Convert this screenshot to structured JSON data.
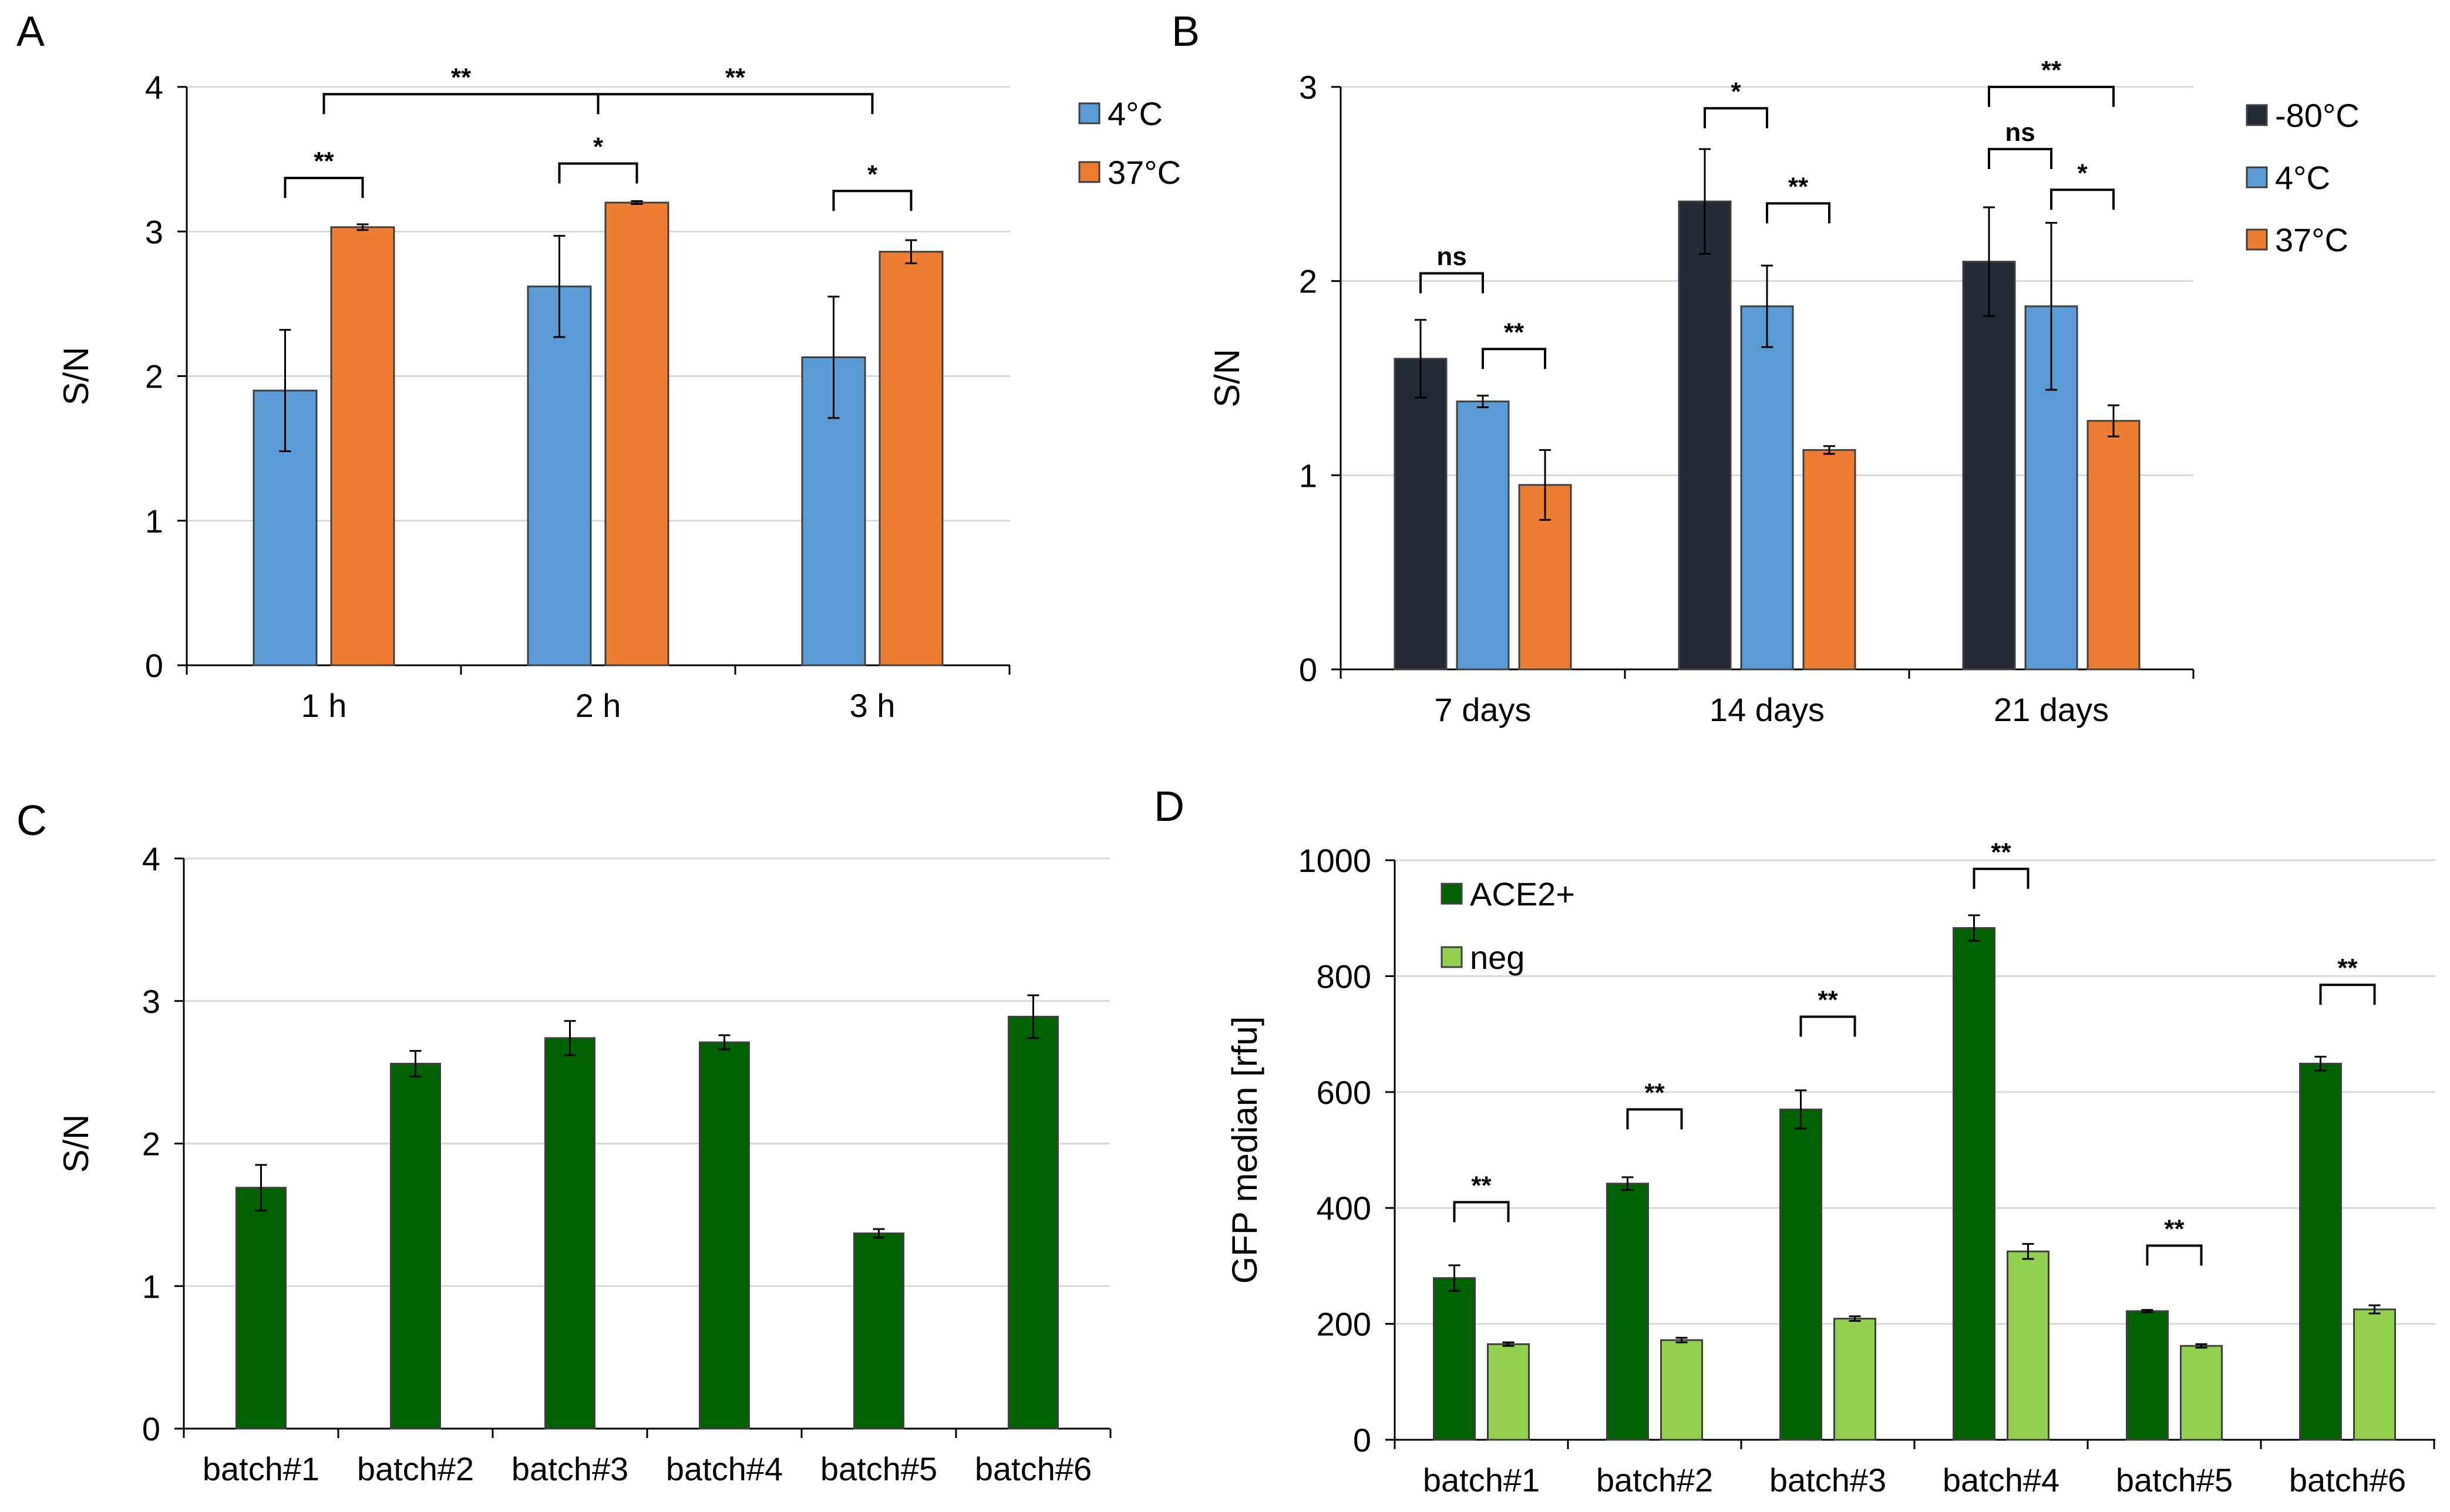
{
  "chart_data": [
    {
      "panel": "A",
      "type": "bar",
      "ylabel": "S/N",
      "xlabel": "",
      "ylim": [
        0,
        4
      ],
      "yticks": [
        0,
        1,
        2,
        3,
        4
      ],
      "categories": [
        "1 h",
        "2 h",
        "3 h"
      ],
      "series": [
        {
          "name": "4°C",
          "color": "#5b9bd5",
          "values": [
            1.9,
            2.62,
            2.13
          ],
          "errors": [
            0.42,
            0.35,
            0.42
          ]
        },
        {
          "name": "37°C",
          "color": "#ed7d31",
          "values": [
            3.03,
            3.2,
            2.86
          ],
          "errors": [
            0.02,
            0.01,
            0.08
          ]
        }
      ],
      "legend_position": "top-right",
      "grid": true,
      "annotations": [
        {
          "label": "**",
          "from": [
            0,
            0
          ],
          "to": [
            0,
            1
          ],
          "level": 3.37
        },
        {
          "label": "*",
          "from": [
            1,
            0
          ],
          "to": [
            1,
            1
          ],
          "level": 3.47
        },
        {
          "label": "*",
          "from": [
            2,
            0
          ],
          "to": [
            2,
            1
          ],
          "level": 3.28
        },
        {
          "label": "**",
          "from": [
            0,
            "mid"
          ],
          "to": [
            1,
            "mid"
          ],
          "level": 3.95
        },
        {
          "label": "**",
          "from": [
            1,
            "mid"
          ],
          "to": [
            2,
            "mid"
          ],
          "level": 3.95
        }
      ]
    },
    {
      "panel": "B",
      "type": "bar",
      "ylabel": "S/N",
      "xlabel": "",
      "ylim": [
        0,
        3
      ],
      "yticks": [
        0,
        1,
        2,
        3
      ],
      "categories": [
        "7 days",
        "14 days",
        "21 days"
      ],
      "series": [
        {
          "name": "-80°C",
          "color": "#222a35",
          "values": [
            1.6,
            2.41,
            2.1
          ],
          "errors": [
            0.2,
            0.27,
            0.28
          ]
        },
        {
          "name": "4°C",
          "color": "#5b9bd5",
          "values": [
            1.38,
            1.87,
            1.87
          ],
          "errors": [
            0.03,
            0.21,
            0.43
          ]
        },
        {
          "name": "37°C",
          "color": "#ed7d31",
          "values": [
            0.95,
            1.13,
            1.28
          ],
          "errors": [
            0.18,
            0.02,
            0.08
          ]
        }
      ],
      "legend_position": "top-right",
      "grid": true,
      "annotations": [
        {
          "label": "ns",
          "from": [
            0,
            0
          ],
          "to": [
            0,
            1
          ],
          "level": 2.04
        },
        {
          "label": "**",
          "from": [
            0,
            1
          ],
          "to": [
            0,
            2
          ],
          "level": 1.65
        },
        {
          "label": "*",
          "from": [
            1,
            0
          ],
          "to": [
            1,
            1
          ],
          "level": 2.89
        },
        {
          "label": "**",
          "from": [
            1,
            1
          ],
          "to": [
            1,
            2
          ],
          "level": 2.4
        },
        {
          "label": "ns",
          "from": [
            2,
            0
          ],
          "to": [
            2,
            1
          ],
          "level": 2.68
        },
        {
          "label": "*",
          "from": [
            2,
            1
          ],
          "to": [
            2,
            2
          ],
          "level": 2.47
        },
        {
          "label": "**",
          "from": [
            2,
            0
          ],
          "to": [
            2,
            2
          ],
          "level": 3.0
        }
      ]
    },
    {
      "panel": "C",
      "type": "bar",
      "ylabel": "S/N",
      "xlabel": "",
      "ylim": [
        0,
        4
      ],
      "yticks": [
        0,
        1,
        2,
        3,
        4
      ],
      "categories": [
        "batch#1",
        "batch#2",
        "batch#3",
        "batch#4",
        "batch#5",
        "batch#6"
      ],
      "series": [
        {
          "name": "",
          "color": "#006100",
          "values": [
            1.69,
            2.56,
            2.74,
            2.71,
            1.37,
            2.89
          ],
          "errors": [
            0.16,
            0.09,
            0.12,
            0.05,
            0.03,
            0.15
          ]
        }
      ],
      "grid": true,
      "annotations": []
    },
    {
      "panel": "D",
      "type": "bar",
      "ylabel": "GFP median [rfu]",
      "xlabel": "",
      "ylim": [
        0,
        1000
      ],
      "yticks": [
        0,
        200,
        400,
        600,
        800,
        1000
      ],
      "categories": [
        "batch#1",
        "batch#2",
        "batch#3",
        "batch#4",
        "batch#5",
        "batch#6"
      ],
      "series": [
        {
          "name": "ACE2+",
          "color": "#006100",
          "values": [
            279,
            442,
            570,
            883,
            222,
            649
          ],
          "errors": [
            22,
            11,
            33,
            22,
            2,
            12
          ]
        },
        {
          "name": "neg",
          "color": "#92d050",
          "values": [
            165,
            172,
            209,
            325,
            162,
            225
          ],
          "errors": [
            3,
            4,
            4,
            13,
            3,
            7
          ]
        }
      ],
      "legend_position": "top-left",
      "grid": true,
      "annotations": [
        {
          "label": "**",
          "from": [
            0,
            0
          ],
          "to": [
            0,
            1
          ],
          "level": 410
        },
        {
          "label": "**",
          "from": [
            1,
            0
          ],
          "to": [
            1,
            1
          ],
          "level": 570
        },
        {
          "label": "**",
          "from": [
            2,
            0
          ],
          "to": [
            2,
            1
          ],
          "level": 730
        },
        {
          "label": "**",
          "from": [
            3,
            0
          ],
          "to": [
            3,
            1
          ],
          "level": 985
        },
        {
          "label": "**",
          "from": [
            4,
            0
          ],
          "to": [
            4,
            1
          ],
          "level": 335
        },
        {
          "label": "**",
          "from": [
            5,
            0
          ],
          "to": [
            5,
            1
          ],
          "level": 785
        }
      ]
    }
  ]
}
